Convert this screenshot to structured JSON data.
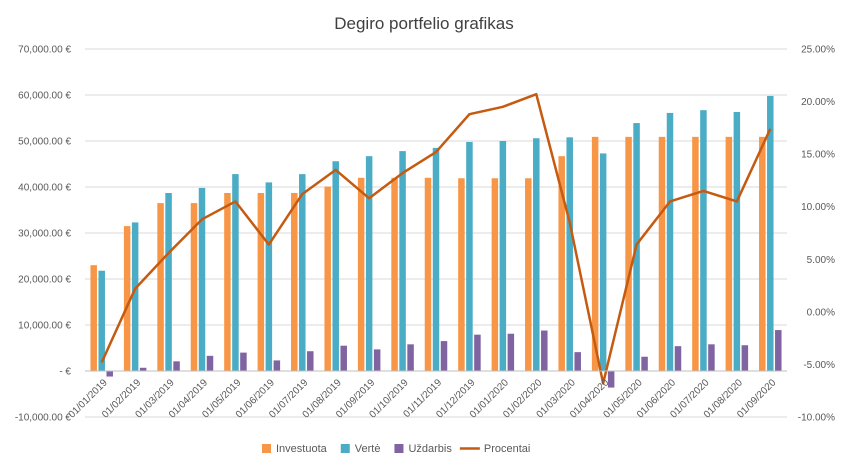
{
  "chart_data": {
    "type": "bar+line",
    "title": "Degiro portfelio grafikas",
    "categories": [
      "01/01/2019",
      "01/02/2019",
      "01/03/2019",
      "01/04/2019",
      "01/05/2019",
      "01/06/2019",
      "01/07/2019",
      "01/08/2019",
      "01/09/2019",
      "01/10/2019",
      "01/11/2019",
      "01/12/2019",
      "01/01/2020",
      "01/02/2020",
      "01/03/2020",
      "01/04/2020",
      "01/05/2020",
      "01/06/2020",
      "01/07/2020",
      "01/08/2020",
      "01/09/2020"
    ],
    "series": [
      {
        "name": "Investuota",
        "kind": "bar",
        "axis": "left",
        "color": "#F79646",
        "values": [
          23000,
          31500,
          36500,
          36500,
          38700,
          38700,
          38700,
          40100,
          42000,
          42000,
          42000,
          41900,
          41900,
          41900,
          46700,
          50900,
          50900,
          50900,
          50900,
          50900,
          50900
        ]
      },
      {
        "name": "Vertė",
        "kind": "bar",
        "axis": "left",
        "color": "#4BACC6",
        "values": [
          21800,
          32300,
          38700,
          39800,
          42800,
          41000,
          42800,
          45600,
          46700,
          47800,
          48500,
          49800,
          50000,
          50600,
          50800,
          47300,
          53900,
          56100,
          56700,
          56300,
          59800
        ]
      },
      {
        "name": "Uždarbis",
        "kind": "bar",
        "axis": "left",
        "color": "#8064A2",
        "values": [
          -1200,
          700,
          2100,
          3300,
          4000,
          2300,
          4300,
          5500,
          4700,
          5800,
          6500,
          7900,
          8100,
          8800,
          4100,
          -3600,
          3100,
          5400,
          5800,
          5600,
          8900
        ]
      },
      {
        "name": "Procentai",
        "kind": "line",
        "axis": "right",
        "color": "#C55A11",
        "values": [
          -4.8,
          2.2,
          5.6,
          8.8,
          10.5,
          6.4,
          11.2,
          13.5,
          10.8,
          13.2,
          15.2,
          18.8,
          19.5,
          20.7,
          8.5,
          -6.8,
          6.4,
          10.5,
          11.5,
          10.5,
          17.4
        ]
      }
    ],
    "y_left": {
      "ylim": [
        -10000,
        70000
      ],
      "tick_values": [
        -10000,
        0,
        10000,
        20000,
        30000,
        40000,
        50000,
        60000,
        70000
      ],
      "tick_labels": [
        "-10,000.00 €",
        "-   €",
        "10,000.00 €",
        "20,000.00 €",
        "30,000.00 €",
        "40,000.00 €",
        "50,000.00 €",
        "60,000.00 €",
        "70,000.00 €"
      ]
    },
    "y_right": {
      "ylim": [
        -10,
        25
      ],
      "tick_values": [
        -10,
        -5,
        0,
        5,
        10,
        15,
        20,
        25
      ],
      "tick_labels": [
        "-10.00%",
        "-5.00%",
        "0.00%",
        "5.00%",
        "10.00%",
        "15.00%",
        "20.00%",
        "25.00%"
      ]
    },
    "grid": true,
    "legend": "bottom"
  }
}
